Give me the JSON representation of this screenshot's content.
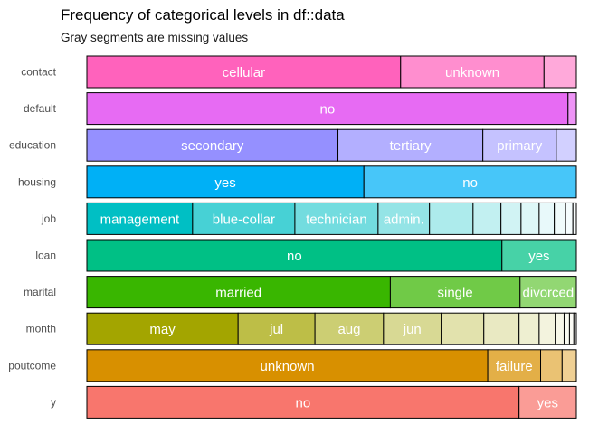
{
  "chart_data": {
    "type": "stacked-bar",
    "title": "Frequency of categorical levels in df::data",
    "subtitle": "Gray segments are missing values",
    "variables": [
      {
        "name": "contact",
        "levels": [
          {
            "label": "cellular",
            "prop": 0.641
          },
          {
            "label": "unknown",
            "prop": 0.293
          },
          {
            "label": "",
            "prop": 0.066
          }
        ]
      },
      {
        "name": "default",
        "levels": [
          {
            "label": "no",
            "prop": 0.983
          },
          {
            "label": "",
            "prop": 0.017
          }
        ]
      },
      {
        "name": "education",
        "levels": [
          {
            "label": "secondary",
            "prop": 0.513
          },
          {
            "label": "tertiary",
            "prop": 0.296
          },
          {
            "label": "primary",
            "prop": 0.15
          },
          {
            "label": "",
            "prop": 0.041
          }
        ]
      },
      {
        "name": "housing",
        "levels": [
          {
            "label": "yes",
            "prop": 0.566
          },
          {
            "label": "no",
            "prop": 0.434
          }
        ]
      },
      {
        "name": "job",
        "levels": [
          {
            "label": "management",
            "prop": 0.216
          },
          {
            "label": "blue-collar",
            "prop": 0.209
          },
          {
            "label": "technician",
            "prop": 0.17
          },
          {
            "label": "admin.",
            "prop": 0.105
          },
          {
            "label": "",
            "prop": 0.089
          },
          {
            "label": "",
            "prop": 0.057
          },
          {
            "label": "",
            "prop": 0.041
          },
          {
            "label": "",
            "prop": 0.037
          },
          {
            "label": "",
            "prop": 0.031
          },
          {
            "label": "",
            "prop": 0.023
          },
          {
            "label": "",
            "prop": 0.015
          },
          {
            "label": "",
            "prop": 0.007
          }
        ]
      },
      {
        "name": "loan",
        "levels": [
          {
            "label": "no",
            "prop": 0.848
          },
          {
            "label": "yes",
            "prop": 0.152
          }
        ]
      },
      {
        "name": "marital",
        "levels": [
          {
            "label": "married",
            "prop": 0.62
          },
          {
            "label": "single",
            "prop": 0.265
          },
          {
            "label": "divorced",
            "prop": 0.115
          }
        ]
      },
      {
        "name": "month",
        "levels": [
          {
            "label": "may",
            "prop": 0.309
          },
          {
            "label": "jul",
            "prop": 0.157
          },
          {
            "label": "aug",
            "prop": 0.14
          },
          {
            "label": "jun",
            "prop": 0.118
          },
          {
            "label": "",
            "prop": 0.087
          },
          {
            "label": "",
            "prop": 0.072
          },
          {
            "label": "",
            "prop": 0.041
          },
          {
            "label": "",
            "prop": 0.033
          },
          {
            "label": "",
            "prop": 0.018
          },
          {
            "label": "",
            "prop": 0.011
          },
          {
            "label": "",
            "prop": 0.009
          },
          {
            "label": "",
            "prop": 0.005
          }
        ]
      },
      {
        "name": "poutcome",
        "levels": [
          {
            "label": "unknown",
            "prop": 0.819
          },
          {
            "label": "failure",
            "prop": 0.108
          },
          {
            "label": "",
            "prop": 0.044
          },
          {
            "label": "",
            "prop": 0.029
          }
        ]
      },
      {
        "name": "y",
        "levels": [
          {
            "label": "no",
            "prop": 0.883
          },
          {
            "label": "yes",
            "prop": 0.117
          }
        ]
      }
    ],
    "colors": {
      "contact": "#FF62BC",
      "default": "#E76BF3",
      "education": "#9590FF",
      "housing": "#00B0F6",
      "job": "#00BFC4",
      "loan": "#00C085",
      "marital": "#39B600",
      "month": "#A3A500",
      "poutcome": "#D89000",
      "y": "#F8766D"
    }
  }
}
